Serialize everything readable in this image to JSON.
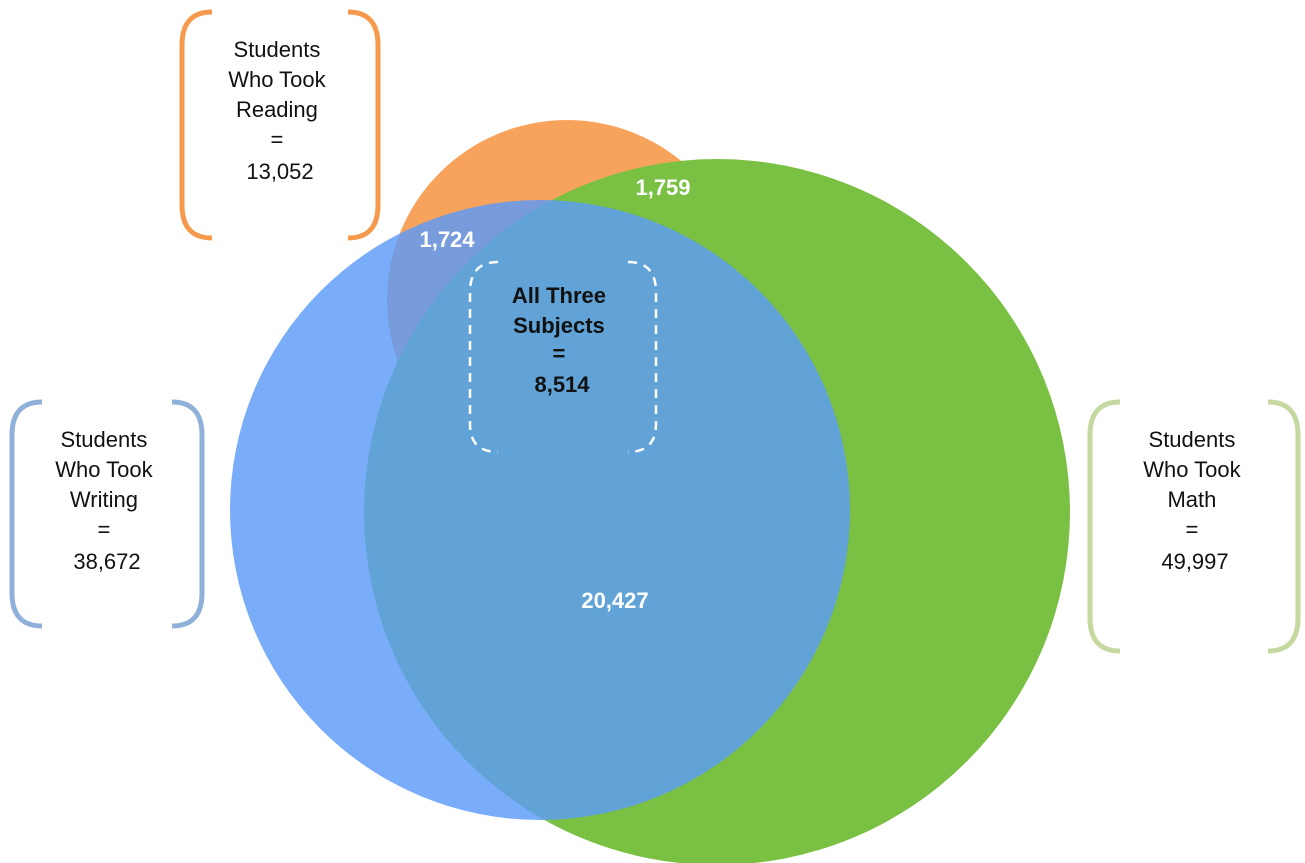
{
  "colors": {
    "reading": "#f79646",
    "math": "#7ac143",
    "writing": "#5b9bf8",
    "reading_bracket": "#f59a4d",
    "writing_bracket": "#8fb0d8",
    "math_bracket": "#c5d89f"
  },
  "sets": {
    "reading": {
      "lines": [
        "Students",
        "Who Took",
        "Reading",
        "="
      ],
      "count": "13,052"
    },
    "writing": {
      "lines": [
        "Students",
        "Who Took",
        "Writing",
        "="
      ],
      "count": "38,672"
    },
    "math": {
      "lines": [
        "Students",
        "Who Took",
        "Math",
        "="
      ],
      "count": "49,997"
    }
  },
  "regions": {
    "reading_writing": "1,724",
    "reading_math": "1,759",
    "writing_math": "20,427"
  },
  "center": {
    "lines": [
      "All Three",
      "Subjects",
      "="
    ],
    "count": "8,514"
  }
}
